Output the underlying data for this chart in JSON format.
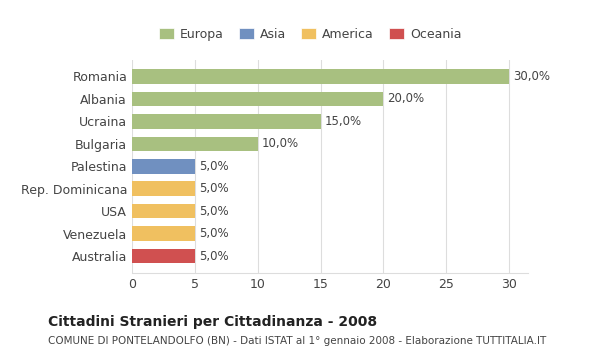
{
  "categories": [
    "Romania",
    "Albania",
    "Ucraina",
    "Bulgaria",
    "Palestina",
    "Rep. Dominicana",
    "USA",
    "Venezuela",
    "Australia"
  ],
  "values": [
    30.0,
    20.0,
    15.0,
    10.0,
    5.0,
    5.0,
    5.0,
    5.0,
    5.0
  ],
  "colors": [
    "#a8c080",
    "#a8c080",
    "#a8c080",
    "#a8c080",
    "#7090c0",
    "#f0c060",
    "#f0c060",
    "#f0c060",
    "#d05050"
  ],
  "labels": [
    "30,0%",
    "20,0%",
    "15,0%",
    "10,0%",
    "5,0%",
    "5,0%",
    "5,0%",
    "5,0%",
    "5,0%"
  ],
  "legend_labels": [
    "Europa",
    "Asia",
    "America",
    "Oceania"
  ],
  "legend_colors": [
    "#a8c080",
    "#7090c0",
    "#f0c060",
    "#d05050"
  ],
  "title": "Cittadini Stranieri per Cittadinanza - 2008",
  "subtitle": "COMUNE DI PONTELANDOLFO (BN) - Dati ISTAT al 1° gennaio 2008 - Elaborazione TUTTITALIA.IT",
  "xlim": [
    0,
    30
  ],
  "xticks": [
    0,
    5,
    10,
    15,
    20,
    25,
    30
  ],
  "background_color": "#ffffff",
  "grid_color": "#dddddd",
  "bar_edge_color": "none"
}
